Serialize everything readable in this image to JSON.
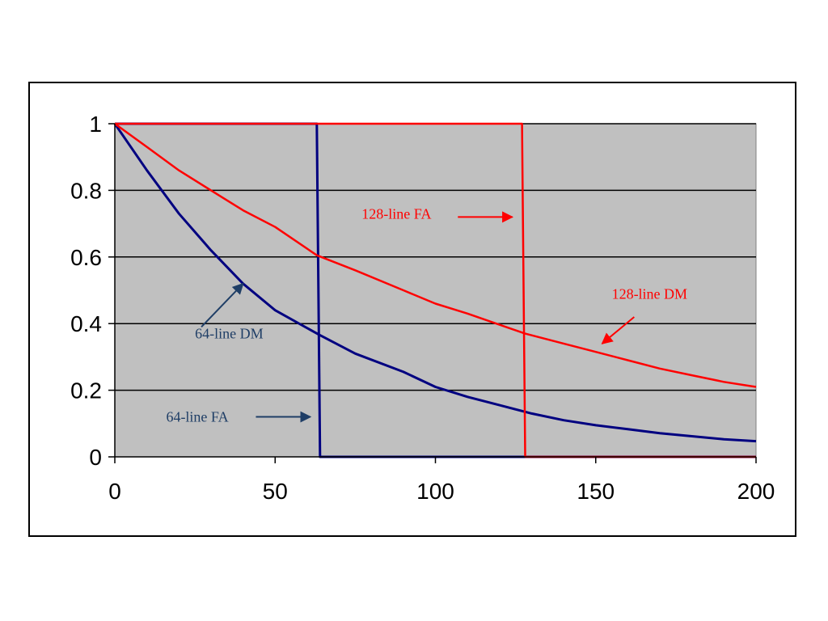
{
  "chart_data": {
    "type": "line",
    "title": "",
    "xlabel": "",
    "ylabel": "",
    "xlim": [
      0,
      200
    ],
    "ylim": [
      0,
      1
    ],
    "x_ticks": [
      0,
      50,
      100,
      150,
      200
    ],
    "x_tick_labels": [
      "0",
      "50",
      "100",
      "150",
      "200"
    ],
    "y_ticks": [
      0,
      0.2,
      0.4,
      0.6,
      0.8,
      1
    ],
    "y_tick_labels": [
      "0",
      "0.2",
      "0.4",
      "0.6",
      "0.8",
      "1"
    ],
    "grid": "horizontal",
    "plot_background": "#c0c0c0",
    "series": [
      {
        "name": "64-line DM",
        "color": "#000080",
        "x": [
          0,
          10,
          20,
          30,
          40,
          50,
          64,
          75,
          90,
          100,
          110,
          120,
          130,
          140,
          150,
          160,
          170,
          180,
          190,
          200
        ],
        "y": [
          1,
          0.86,
          0.73,
          0.62,
          0.52,
          0.44,
          0.365,
          0.31,
          0.255,
          0.21,
          0.18,
          0.155,
          0.13,
          0.11,
          0.095,
          0.083,
          0.071,
          0.062,
          0.053,
          0.047
        ]
      },
      {
        "name": "64-line FA",
        "color": "#000080",
        "x": [
          0,
          63,
          64,
          200
        ],
        "y": [
          1,
          1,
          0,
          0
        ]
      },
      {
        "name": "128-line DM",
        "color": "#ff0000",
        "x": [
          0,
          10,
          20,
          30,
          40,
          50,
          63,
          75,
          90,
          100,
          110,
          128,
          140,
          150,
          160,
          170,
          180,
          190,
          200
        ],
        "y": [
          1,
          0.93,
          0.86,
          0.8,
          0.74,
          0.69,
          0.605,
          0.56,
          0.5,
          0.46,
          0.43,
          0.37,
          0.34,
          0.315,
          0.29,
          0.265,
          0.245,
          0.225,
          0.21
        ]
      },
      {
        "name": "128-line FA",
        "color": "#ff0000",
        "x": [
          0,
          127,
          128,
          200
        ],
        "y": [
          1,
          1,
          0,
          0
        ]
      }
    ],
    "annotations": [
      {
        "text": "128-line FA",
        "color": "#ff0000",
        "label_xy": [
          77,
          0.715
        ],
        "arrow_from": [
          107,
          0.72
        ],
        "arrow_to": [
          124,
          0.72
        ]
      },
      {
        "text": "128-line DM",
        "color": "#ff0000",
        "label_xy": [
          155,
          0.475
        ],
        "arrow_from": [
          162,
          0.42
        ],
        "arrow_to": [
          152,
          0.34
        ]
      },
      {
        "text": "64-line DM",
        "color": "#1f3e66",
        "label_xy": [
          25,
          0.355
        ],
        "arrow_from": [
          27,
          0.39
        ],
        "arrow_to": [
          40,
          0.52
        ]
      },
      {
        "text": "64-line FA",
        "color": "#1f3e66",
        "label_xy": [
          16,
          0.105
        ],
        "arrow_from": [
          44,
          0.12
        ],
        "arrow_to": [
          61,
          0.12
        ]
      }
    ]
  }
}
